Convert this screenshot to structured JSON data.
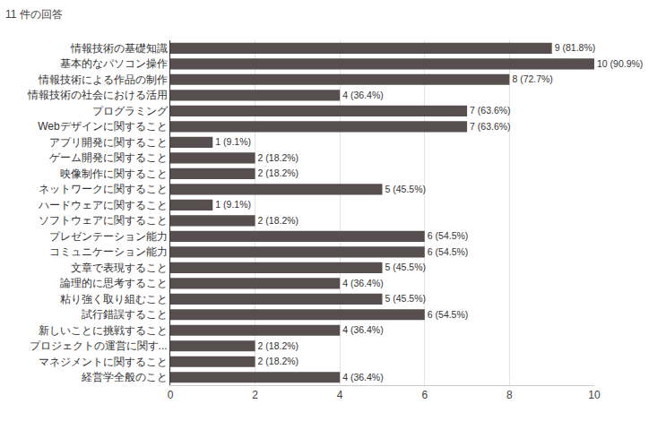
{
  "chart_data": {
    "type": "bar",
    "title": "11 件の回答",
    "orientation": "horizontal",
    "categories": [
      "情報技術の基礎知識",
      "基本的なパソコン操作",
      "情報技術による作品の制作",
      "情報技術の社会における活用",
      "プログラミング",
      "Webデザインに関すること",
      "アプリ開発に関すること",
      "ゲーム開発に関すること",
      "映像制作に関すること",
      "ネットワークに関すること",
      "ハードウェアに関すること",
      "ソフトウェアに関すること",
      "プレゼンテーション能力",
      "コミュニケーション能力",
      "文章で表現すること",
      "論理的に思考すること",
      "粘り強く取り組むこと",
      "試行錯誤すること",
      "新しいことに挑戦すること",
      "プロジェクトの運営に関す...",
      "マネジメントに関すること",
      "経営学全般のこと"
    ],
    "values": [
      9,
      10,
      8,
      4,
      7,
      7,
      1,
      2,
      2,
      5,
      1,
      2,
      6,
      6,
      5,
      4,
      5,
      6,
      4,
      2,
      2,
      4
    ],
    "value_labels": [
      "9 (81.8%)",
      "10 (90.9%)",
      "8 (72.7%)",
      "4 (36.4%)",
      "7 (63.6%)",
      "7 (63.6%)",
      "1 (9.1%)",
      "2 (18.2%)",
      "2 (18.2%)",
      "5 (45.5%)",
      "1 (9.1%)",
      "2 (18.2%)",
      "6 (54.5%)",
      "6 (54.5%)",
      "5 (45.5%)",
      "4 (36.4%)",
      "5 (45.5%)",
      "6 (54.5%)",
      "4 (36.4%)",
      "2 (18.2%)",
      "2 (18.2%)",
      "4 (36.4%)"
    ],
    "color": "#574f4f",
    "xlim": [
      0,
      10
    ],
    "xticks": [
      0,
      2,
      4,
      6,
      8,
      10
    ],
    "grid": true,
    "data_labels": true
  }
}
